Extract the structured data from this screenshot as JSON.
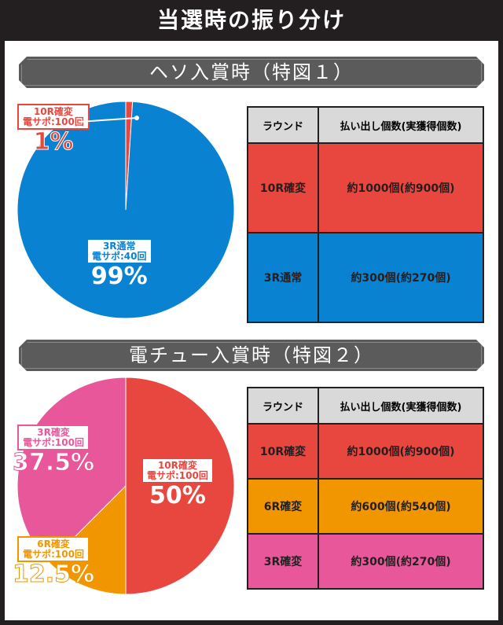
{
  "header": {
    "title": "当選時の振り分け"
  },
  "colors": {
    "red": "#e8473f",
    "blue": "#0a82d2",
    "orange": "#f29600",
    "pink": "#e9579b"
  },
  "sections": [
    {
      "title": "ヘソ入賞時（特図１）",
      "chart_data": {
        "type": "pie",
        "slices": [
          {
            "label_line1": "10R確変",
            "label_line2": "電サポ:100回",
            "value": 1,
            "display": "1%",
            "color": "#e8473f"
          },
          {
            "label_line1": "3R通常",
            "label_line2": "電サポ:40回",
            "value": 99,
            "display": "99%",
            "color": "#0a82d2"
          }
        ]
      },
      "table": {
        "headers": [
          "ラウンド",
          "払い出し個数(実獲得個数)"
        ],
        "rows": [
          {
            "round": "10R確変",
            "payout": "約1000個(約900個)",
            "color": "red"
          },
          {
            "round": "3R通常",
            "payout": "約300個(約270個)",
            "color": "blue"
          }
        ]
      }
    },
    {
      "title": "電チュー入賞時（特図２）",
      "chart_data": {
        "type": "pie",
        "slices": [
          {
            "label_line1": "10R確変",
            "label_line2": "電サポ:100回",
            "value": 50,
            "display": "50%",
            "color": "#e8473f"
          },
          {
            "label_line1": "6R確変",
            "label_line2": "電サポ:100回",
            "value": 12.5,
            "display": "12.5%",
            "color": "#f29600"
          },
          {
            "label_line1": "3R確変",
            "label_line2": "電サポ:100回",
            "value": 37.5,
            "display": "37.5%",
            "color": "#e9579b"
          }
        ]
      },
      "table": {
        "headers": [
          "ラウンド",
          "払い出し個数(実獲得個数)"
        ],
        "rows": [
          {
            "round": "10R確変",
            "payout": "約1000個(約900個)",
            "color": "red"
          },
          {
            "round": "6R確変",
            "payout": "約600個(約540個)",
            "color": "orange"
          },
          {
            "round": "3R確変",
            "payout": "約300個(約270個)",
            "color": "pink"
          }
        ]
      }
    }
  ]
}
